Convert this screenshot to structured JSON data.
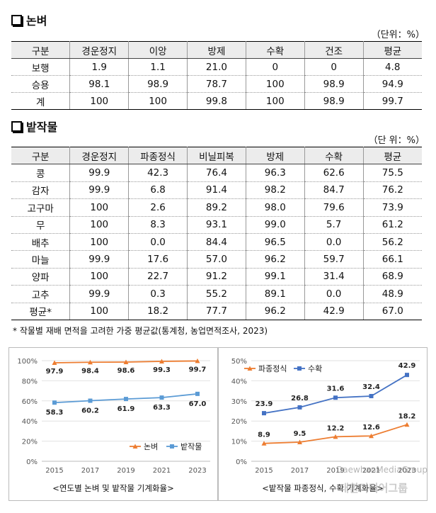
{
  "section1": {
    "title": "논벼",
    "unit": "（단위：%）",
    "headers": [
      "구분",
      "경운정지",
      "이앙",
      "방제",
      "수확",
      "건조",
      "평균"
    ],
    "rows": [
      [
        "보행",
        "1.9",
        "1.1",
        "21.0",
        "0",
        "0",
        "4.8"
      ],
      [
        "승용",
        "98.1",
        "98.9",
        "78.7",
        "100",
        "98.9",
        "94.9"
      ],
      [
        "계",
        "100",
        "100",
        "99.8",
        "100",
        "98.9",
        "99.7"
      ]
    ]
  },
  "section2": {
    "title": "밭작물",
    "unit": "（단 위：%）",
    "headers": [
      "구분",
      "경운정지",
      "파종정식",
      "비닐피복",
      "방제",
      "수확",
      "평균"
    ],
    "rows": [
      [
        "콩",
        "99.9",
        "42.3",
        "76.4",
        "96.3",
        "62.6",
        "75.5"
      ],
      [
        "감자",
        "99.9",
        "6.8",
        "91.4",
        "98.2",
        "84.7",
        "76.2"
      ],
      [
        "고구마",
        "100",
        "2.6",
        "89.2",
        "98.0",
        "79.6",
        "73.9"
      ],
      [
        "무",
        "100",
        "8.3",
        "93.1",
        "99.0",
        "5.7",
        "61.2"
      ],
      [
        "배추",
        "100",
        "0.0",
        "84.4",
        "96.5",
        "0.0",
        "56.2"
      ],
      [
        "마늘",
        "99.9",
        "17.6",
        "57.0",
        "96.2",
        "59.7",
        "66.1"
      ],
      [
        "양파",
        "100",
        "22.7",
        "91.2",
        "99.1",
        "31.4",
        "68.9"
      ],
      [
        "고추",
        "99.9",
        "0.3",
        "55.2",
        "89.1",
        "0.0",
        "48.9"
      ],
      [
        "평균*",
        "100",
        "18.2",
        "77.7",
        "96.2",
        "42.9",
        "67.0"
      ]
    ]
  },
  "note": "* 작물별 재배 면적을 고려한 가중 평균값(통계청, 농업면적조사, 2023)",
  "chart_data": [
    {
      "type": "line",
      "x": [
        "2015",
        "2017",
        "2019",
        "2021",
        "2023"
      ],
      "ylim": [
        0,
        100
      ],
      "yticks": [
        "0%",
        "20%",
        "40%",
        "60%",
        "80%",
        "100%"
      ],
      "series": [
        {
          "name": "논벼",
          "values": [
            97.9,
            98.4,
            98.6,
            99.3,
            99.7
          ],
          "labels": [
            "97.9",
            "98.4",
            "98.6",
            "99.3",
            "99.7"
          ],
          "color": "#ED7D31"
        },
        {
          "name": "밭작물",
          "values": [
            58.3,
            60.2,
            61.9,
            63.3,
            67.0
          ],
          "labels": [
            "58.3",
            "60.2",
            "61.9",
            "63.3",
            "67.0"
          ],
          "color": "#5B9BD5"
        }
      ],
      "legend": "bottom-right",
      "caption": "<연도별 논벼 및 밭작물 기계화율>"
    },
    {
      "type": "line",
      "x": [
        "2015",
        "2017",
        "2019",
        "2021",
        "2023"
      ],
      "ylim": [
        0,
        50
      ],
      "yticks": [
        "0%",
        "10%",
        "20%",
        "30%",
        "40%",
        "50%"
      ],
      "series": [
        {
          "name": "파종정식",
          "values": [
            8.9,
            9.5,
            12.2,
            12.6,
            18.2
          ],
          "labels": [
            "8.9",
            "9.5",
            "12.2",
            "12.6",
            "18.2"
          ],
          "color": "#ED7D31"
        },
        {
          "name": "수확",
          "values": [
            23.9,
            26.8,
            31.6,
            32.4,
            42.9
          ],
          "labels": [
            "23.9",
            "26.8",
            "31.6",
            "32.4",
            "42.9"
          ],
          "color": "#4472C4"
        }
      ],
      "legend": "top-left",
      "caption": "<밭작물 파종정식, 수확 기계화율>"
    }
  ],
  "watermark": {
    "line1": "DaewhanMediaGroup",
    "line2": "대환미디어그룹"
  }
}
